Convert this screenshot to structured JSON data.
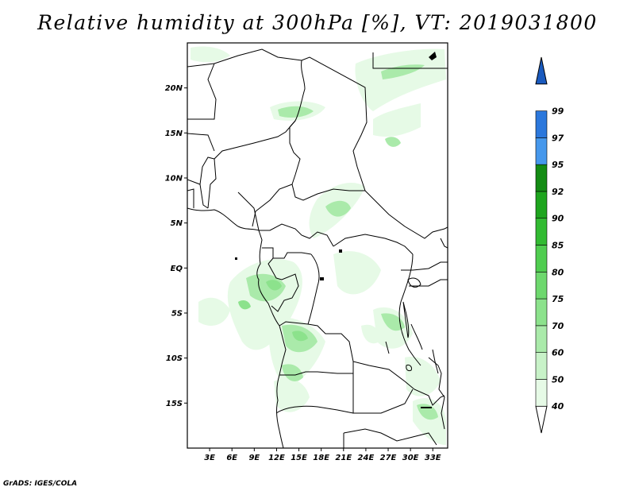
{
  "title": "Relative humidity at 300hPa [%], VT: 2019031800",
  "credit": "GrADS: IGES/COLA",
  "map": {
    "lat_ticks": [
      "20N",
      "15N",
      "10N",
      "5N",
      "EQ",
      "5S",
      "10S",
      "15S"
    ],
    "lon_ticks": [
      "3E",
      "6E",
      "9E",
      "12E",
      "15E",
      "18E",
      "21E",
      "24E",
      "27E",
      "30E",
      "33E"
    ],
    "lat_values": [
      20,
      15,
      10,
      5,
      0,
      -5,
      -10,
      -15
    ],
    "lon_values": [
      3,
      6,
      9,
      12,
      15,
      18,
      21,
      24,
      27,
      30,
      33
    ],
    "lon_range": [
      0,
      35
    ],
    "lat_range": [
      -20,
      25
    ]
  },
  "colorbar": {
    "labels": [
      "40",
      "50",
      "60",
      "70",
      "75",
      "80",
      "85",
      "90",
      "92",
      "95",
      "97",
      "99"
    ],
    "colors": [
      "#ffffff",
      "#e6fae6",
      "#c8f2c8",
      "#aaeaaa",
      "#8ce28c",
      "#6ed86e",
      "#50cd50",
      "#32bb32",
      "#1ea51e",
      "#148c14",
      "#4698ec",
      "#2c78dc",
      "#1a5abe"
    ]
  }
}
